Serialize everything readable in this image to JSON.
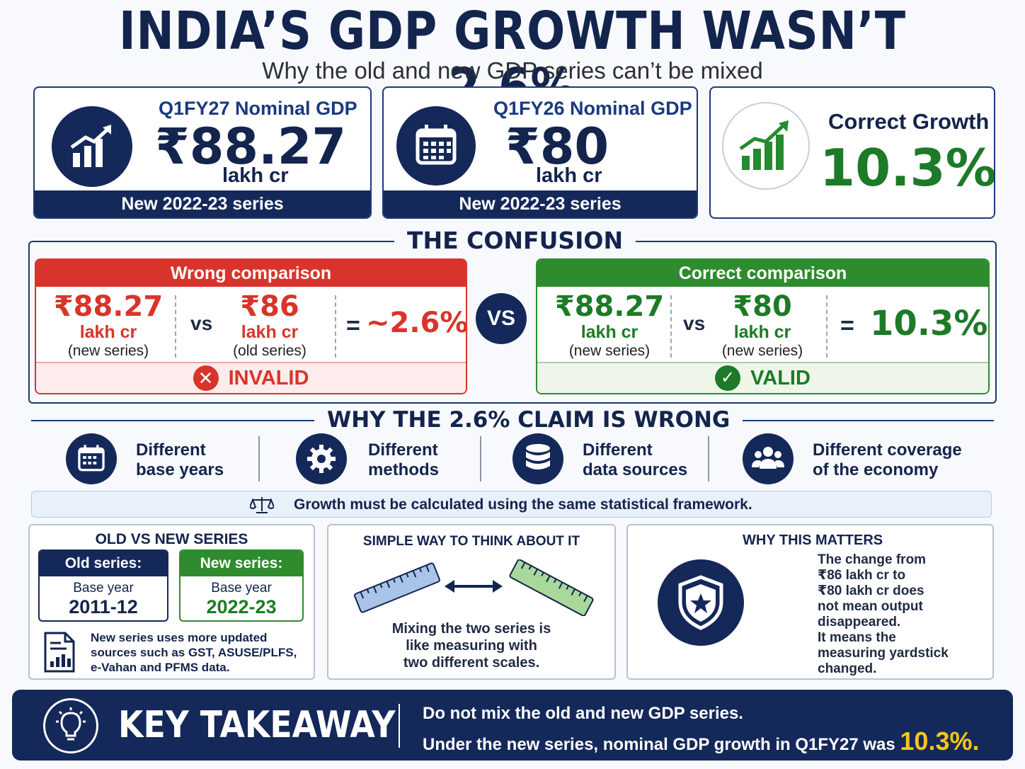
{
  "title": "INDIA’S GDP GROWTH WASN’T 2.6%",
  "subtitle": "Why the old and new GDP series can’t be mixed",
  "cards": [
    {
      "label": "Q1FY27 Nominal GDP",
      "value": "₹88.27",
      "unit": "lakh cr",
      "footer": "New 2022-23 series",
      "icon": "growth-chart-icon"
    },
    {
      "label": "Q1FY26 Nominal GDP",
      "value": "₹80",
      "unit": "lakh cr",
      "footer": "New 2022-23 series",
      "icon": "calendar-icon"
    },
    {
      "label": "Correct Growth",
      "value": "10.3%",
      "icon": "rising-bars-icon"
    }
  ],
  "confusion": {
    "heading": "THE CONFUSION",
    "vs": "VS",
    "wrong": {
      "head": "Wrong comparison",
      "left": {
        "num": "₹88.27",
        "unit": "lakh cr",
        "note": "(new series)"
      },
      "vs": "vs",
      "right": {
        "num": "₹86",
        "unit": "lakh cr",
        "note": "(old series)"
      },
      "eq": "=",
      "result": "~2.6%",
      "verdict": "INVALID"
    },
    "correct": {
      "head": "Correct comparison",
      "left": {
        "num": "₹88.27",
        "unit": "lakh cr",
        "note": "(new series)"
      },
      "vs": "vs",
      "right": {
        "num": "₹80",
        "unit": "lakh cr",
        "note": "(new series)"
      },
      "eq": "=",
      "result": "10.3%",
      "verdict": "VALID"
    }
  },
  "why": {
    "heading": "WHY THE 2.6% CLAIM IS WRONG",
    "reasons": [
      {
        "line1": "Different",
        "line2": "base years",
        "icon": "calendar-icon"
      },
      {
        "line1": "Different",
        "line2": "methods",
        "icon": "gear-icon"
      },
      {
        "line1": "Different",
        "line2": "data sources",
        "icon": "database-icon"
      },
      {
        "line1": "Different coverage",
        "line2": "of the economy",
        "icon": "people-icon"
      }
    ],
    "banner": "Growth must be calculated using the same statistical framework."
  },
  "panels": {
    "series": {
      "title": "OLD VS NEW SERIES",
      "old": {
        "head": "Old series:",
        "label": "Base year",
        "year": "2011-12"
      },
      "new": {
        "head": "New series:",
        "label": "Base year",
        "year": "2022-23"
      },
      "note": [
        "New series uses more updated",
        "sources such as GST, ASUSE/PLFS,",
        "e-Vahan and PFMS data."
      ]
    },
    "simple": {
      "title": "SIMPLE WAY TO THINK ABOUT IT",
      "text": [
        "Mixing the two series is",
        "like measuring with",
        "two different scales."
      ]
    },
    "matters": {
      "title": "WHY THIS MATTERS",
      "text": [
        "The change from",
        "₹86 lakh cr to",
        "₹80 lakh cr does",
        "not mean output",
        "disappeared.",
        "It means the",
        "measuring yardstick",
        "changed."
      ]
    }
  },
  "takeaway": {
    "label": "KEY TAKEAWAY",
    "line1": "Do not mix the old and new GDP series.",
    "line2_prefix": "Under the new series, nominal GDP growth in Q1FY27 was",
    "line2_value": "10.3%."
  },
  "colors": {
    "navy": "#14285a",
    "red": "#d9342b",
    "green": "#2e8b2e",
    "yellow": "#f5c518"
  }
}
